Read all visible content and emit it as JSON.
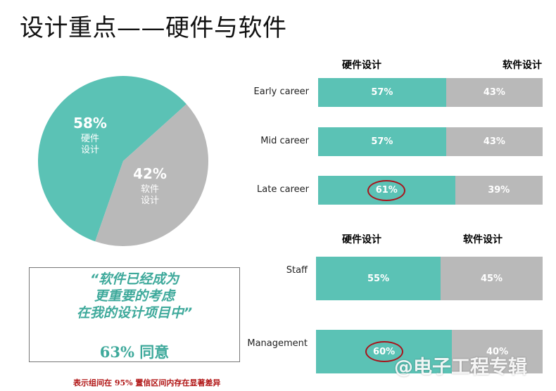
{
  "title": "设计重点——硬件与软件",
  "pie": {
    "chart_data": {
      "type": "pie",
      "slices": [
        {
          "label_lines": [
            "硬件",
            "设计"
          ],
          "value": 58,
          "pct_text": "58%",
          "color": "#5bc2b5"
        },
        {
          "label_lines": [
            "软件",
            "设计"
          ],
          "value": 42,
          "pct_text": "42%",
          "color": "#b9b9b9"
        }
      ]
    }
  },
  "career_chart": {
    "chart_data": {
      "type": "bar",
      "stacked": true,
      "orientation": "horizontal",
      "categories": [
        "Early career",
        "Mid career",
        "Late career"
      ],
      "series": [
        {
          "name": "硬件设计",
          "values": [
            57,
            57,
            61
          ],
          "color": "#5bc2b5"
        },
        {
          "name": "软件设计",
          "values": [
            43,
            43,
            39
          ],
          "color": "#b9b9b9"
        }
      ],
      "highlighted": [
        "Late career"
      ]
    },
    "col_heads": {
      "hw": "硬件设计",
      "sw": "软件设计"
    },
    "rows": [
      {
        "label": "Early career",
        "hw_text": "57%",
        "sw_text": "43%"
      },
      {
        "label": "Mid career",
        "hw_text": "57%",
        "sw_text": "43%"
      },
      {
        "label": "Late career",
        "hw_text": "61%",
        "sw_text": "39%"
      }
    ]
  },
  "role_chart": {
    "chart_data": {
      "type": "bar",
      "stacked": true,
      "orientation": "horizontal",
      "categories": [
        "Staff",
        "Management"
      ],
      "series": [
        {
          "name": "硬件设计",
          "values": [
            55,
            60
          ],
          "color": "#5bc2b5"
        },
        {
          "name": "软件设计",
          "values": [
            45,
            40
          ],
          "color": "#b9b9b9"
        }
      ],
      "highlighted": [
        "Management"
      ]
    },
    "col_heads": {
      "hw": "硬件设计",
      "sw": "软件设计"
    },
    "rows": [
      {
        "label": "Staff",
        "hw_text": "55%",
        "sw_text": "45%"
      },
      {
        "label": "Management",
        "hw_text": "60%",
        "sw_text": "40%"
      }
    ]
  },
  "quote": {
    "text": "“软件已经成为\n更重要的考虑\n在我的设计项目中”",
    "agree": "63% 同意"
  },
  "footnote": "表示组间在 95% 置信区间内存在显著差异",
  "watermark": "@电子工程专辑"
}
